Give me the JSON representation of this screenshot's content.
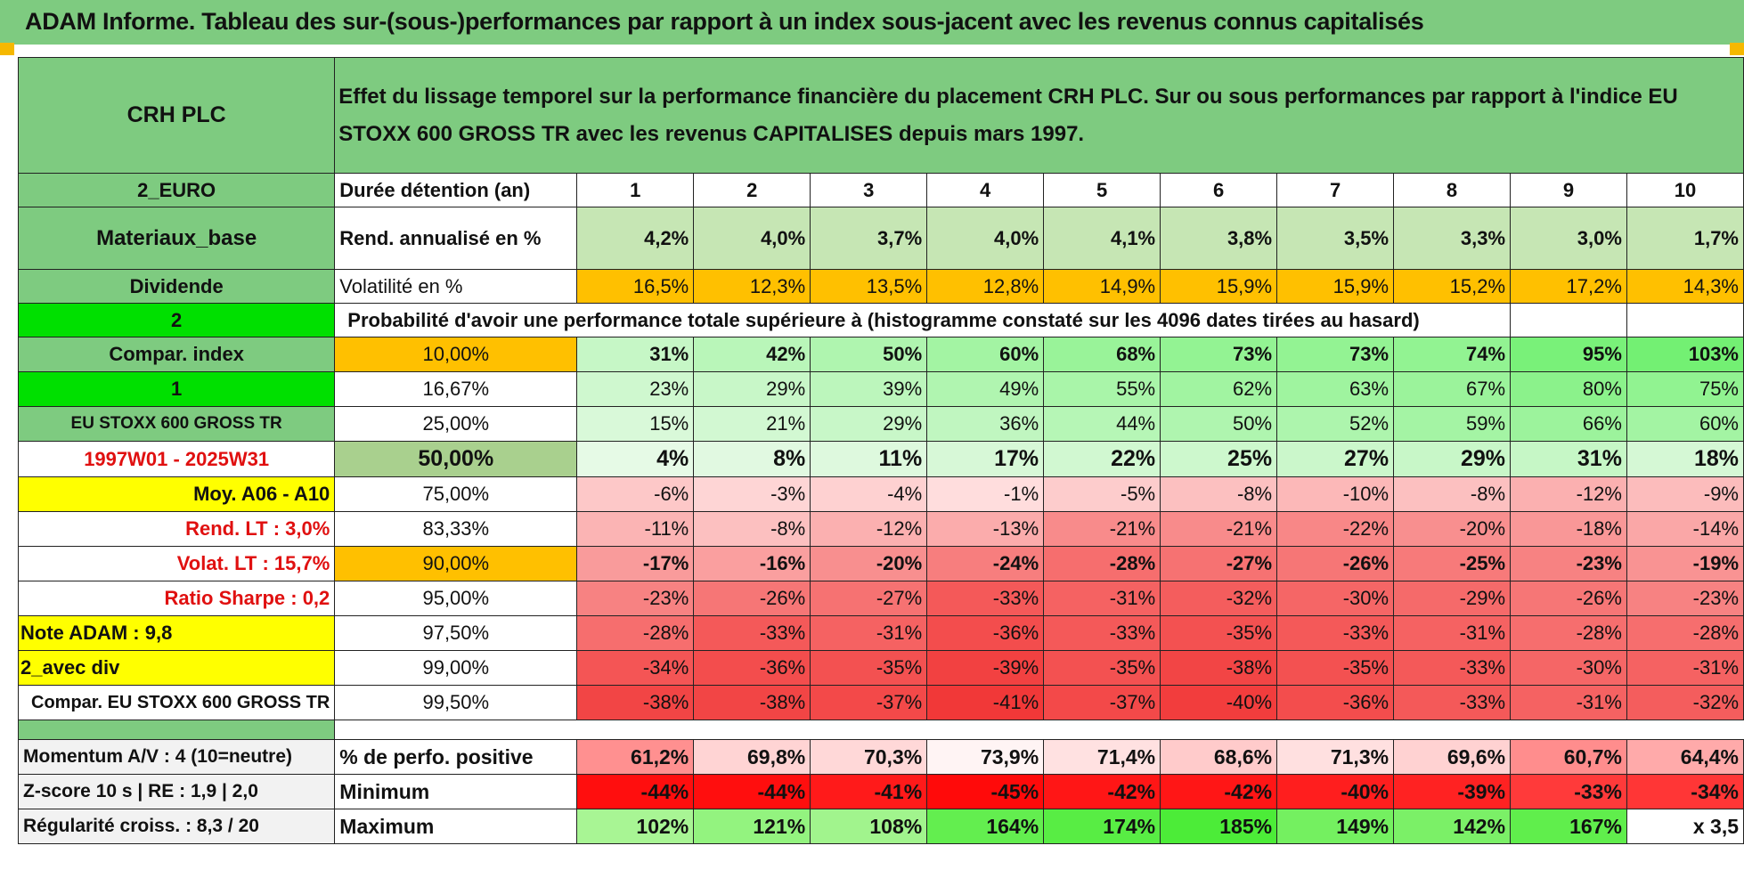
{
  "title": "ADAM Informe. Tableau des sur-(sous-)performances par rapport à un index sous-jacent avec les revenus connus capitalisés",
  "left": {
    "stock": "CRH PLC",
    "currency": "2_EURO",
    "sector": "Materiaux_base",
    "dividend": "Dividende",
    "val_2": "2",
    "compar_index": "Compar. index",
    "val_1": "1",
    "index_name": "EU STOXX 600 GROSS TR",
    "period": "1997W01 - 2025W31",
    "moy": "Moy. A06 - A10",
    "rend_lt": "Rend. LT :   3,0%",
    "volat_lt": "Volat. LT :   15,7%",
    "sharpe": "Ratio Sharpe :    0,2",
    "note": "Note ADAM : 9,8",
    "avec_div": "2_avec div",
    "compar_full": "Compar. EU STOXX 600 GROSS TR"
  },
  "description": "Effet du lissage temporel sur la performance financière du placement CRH PLC. Sur ou sous performances par rapport à l'indice EU STOXX 600 GROSS TR avec les revenus CAPITALISES depuis mars 1997.",
  "header": {
    "label": "Durée détention (an)",
    "years": [
      "1",
      "2",
      "3",
      "4",
      "5",
      "6",
      "7",
      "8",
      "9",
      "10"
    ]
  },
  "rend": {
    "label": "Rend. annualisé en %",
    "values": [
      "4,2%",
      "4,0%",
      "3,7%",
      "4,0%",
      "4,1%",
      "3,8%",
      "3,5%",
      "3,3%",
      "3,0%",
      "1,7%"
    ]
  },
  "vol": {
    "label": "Volatilité en %",
    "values": [
      "16,5%",
      "12,3%",
      "13,5%",
      "12,8%",
      "14,9%",
      "15,9%",
      "15,9%",
      "15,2%",
      "17,2%",
      "14,3%"
    ]
  },
  "prob_label": "Probabilité d'avoir une performance totale supérieure à (histogramme constaté sur les 4096 dates tirées au hasard)",
  "quantiles": [
    {
      "q": "10,00%",
      "values": [
        "31%",
        "42%",
        "50%",
        "60%",
        "68%",
        "73%",
        "73%",
        "74%",
        "95%",
        "103%"
      ]
    },
    {
      "q": "16,67%",
      "values": [
        "23%",
        "29%",
        "39%",
        "49%",
        "55%",
        "62%",
        "63%",
        "67%",
        "80%",
        "75%"
      ]
    },
    {
      "q": "25,00%",
      "values": [
        "15%",
        "21%",
        "29%",
        "36%",
        "44%",
        "50%",
        "52%",
        "59%",
        "66%",
        "60%"
      ]
    },
    {
      "q": "50,00%",
      "values": [
        "4%",
        "8%",
        "11%",
        "17%",
        "22%",
        "25%",
        "27%",
        "29%",
        "31%",
        "18%"
      ]
    },
    {
      "q": "75,00%",
      "values": [
        "-6%",
        "-3%",
        "-4%",
        "-1%",
        "-5%",
        "-8%",
        "-10%",
        "-8%",
        "-12%",
        "-9%"
      ]
    },
    {
      "q": "83,33%",
      "values": [
        "-11%",
        "-8%",
        "-12%",
        "-13%",
        "-21%",
        "-21%",
        "-22%",
        "-20%",
        "-18%",
        "-14%"
      ]
    },
    {
      "q": "90,00%",
      "values": [
        "-17%",
        "-16%",
        "-20%",
        "-24%",
        "-28%",
        "-27%",
        "-26%",
        "-25%",
        "-23%",
        "-19%"
      ]
    },
    {
      "q": "95,00%",
      "values": [
        "-23%",
        "-26%",
        "-27%",
        "-33%",
        "-31%",
        "-32%",
        "-30%",
        "-29%",
        "-26%",
        "-23%"
      ]
    },
    {
      "q": "97,50%",
      "values": [
        "-28%",
        "-33%",
        "-31%",
        "-36%",
        "-33%",
        "-35%",
        "-33%",
        "-31%",
        "-28%",
        "-28%"
      ]
    },
    {
      "q": "99,00%",
      "values": [
        "-34%",
        "-36%",
        "-35%",
        "-39%",
        "-35%",
        "-38%",
        "-35%",
        "-33%",
        "-30%",
        "-31%"
      ]
    },
    {
      "q": "99,50%",
      "values": [
        "-38%",
        "-38%",
        "-37%",
        "-41%",
        "-37%",
        "-40%",
        "-36%",
        "-33%",
        "-31%",
        "-32%"
      ]
    }
  ],
  "footer": [
    {
      "left": "Momentum A/V : 4 (10=neutre)",
      "label": "% de perfo. positive",
      "values": [
        "61,2%",
        "69,8%",
        "70,3%",
        "73,9%",
        "71,4%",
        "68,6%",
        "71,3%",
        "69,6%",
        "60,7%",
        "64,4%"
      ]
    },
    {
      "left": "Z-score 10 s | RE : 1,9 | 2,0",
      "label": "Minimum",
      "values": [
        "-44%",
        "-44%",
        "-41%",
        "-45%",
        "-42%",
        "-42%",
        "-40%",
        "-39%",
        "-33%",
        "-34%"
      ]
    },
    {
      "left": "Régularité croiss. : 8,3 / 20",
      "label": "Maximum",
      "values": [
        "102%",
        "121%",
        "108%",
        "164%",
        "174%",
        "185%",
        "149%",
        "142%",
        "167%",
        "x 3,5"
      ]
    }
  ],
  "colors": {
    "header_green": "#7ecb80",
    "bright_green": "#00e000",
    "orange": "#ffc000",
    "yellow": "#ffff00",
    "label_red": "#e01010"
  }
}
